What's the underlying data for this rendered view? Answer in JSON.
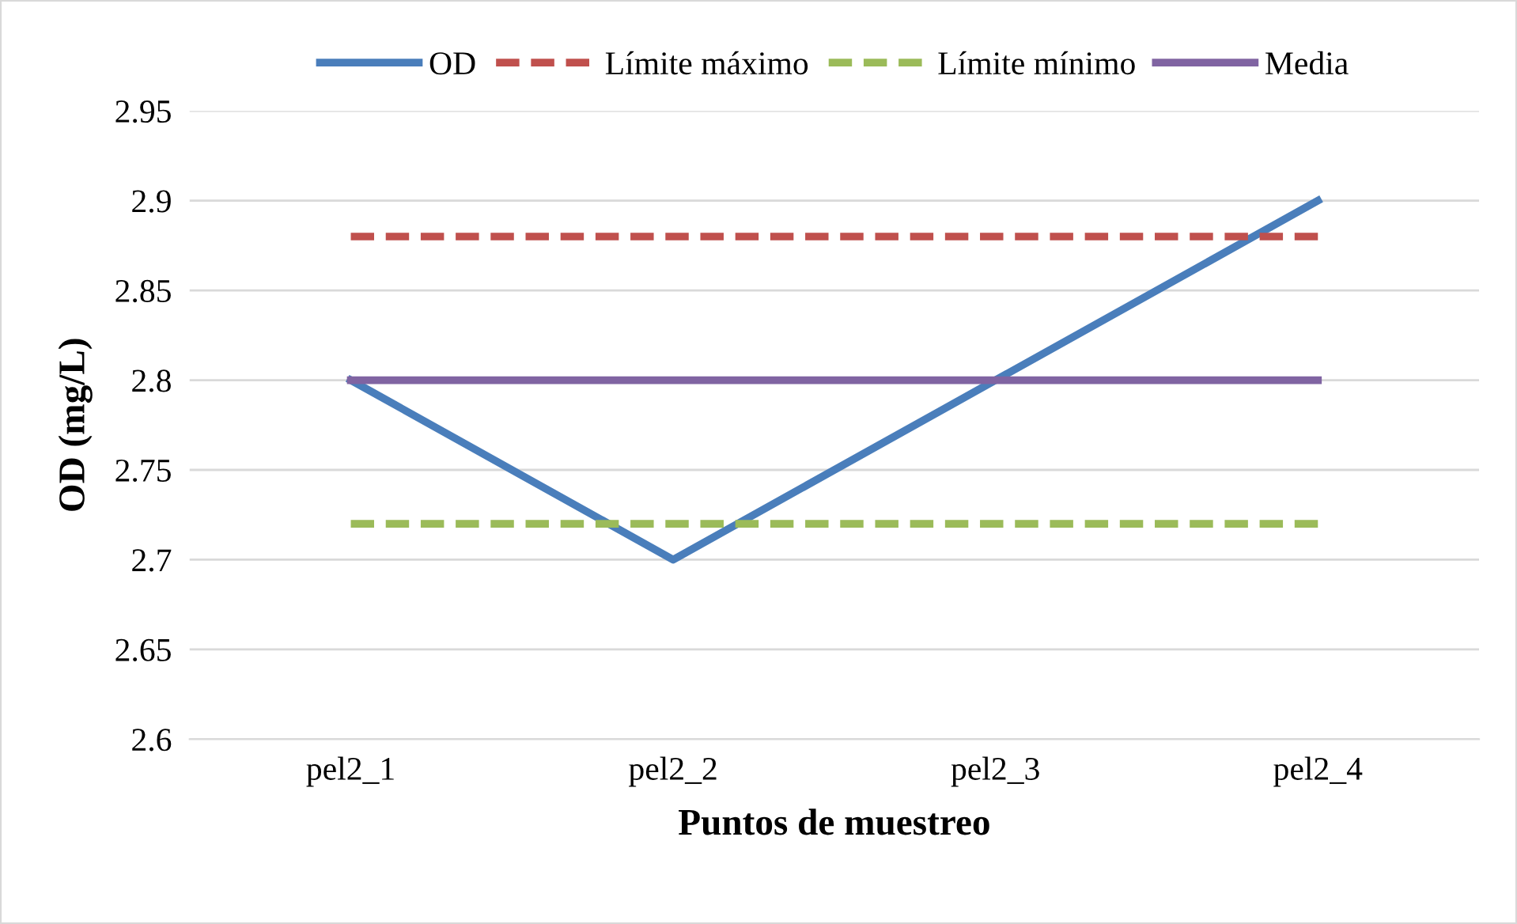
{
  "chart_data": {
    "type": "line",
    "xlabel": "Puntos de muestreo",
    "ylabel": "OD (mg/L)",
    "categories": [
      "pel2_1",
      "pel2_2",
      "pel2_3",
      "pel2_4"
    ],
    "series": [
      {
        "name": "OD",
        "color": "#4a7ebb",
        "values": [
          2.8,
          2.7,
          2.8,
          2.9
        ],
        "line_style": "solid"
      },
      {
        "name": "Límite máximo",
        "color": "#c0504d",
        "values": [
          2.88,
          2.88,
          2.88,
          2.88
        ],
        "line_style": "dashed"
      },
      {
        "name": "Límite mínimo",
        "color": "#9bbb59",
        "values": [
          2.72,
          2.72,
          2.72,
          2.72
        ],
        "line_style": "dashed"
      },
      {
        "name": "Media",
        "color": "#8064a2",
        "values": [
          2.8,
          2.8,
          2.8,
          2.8
        ],
        "line_style": "solid"
      }
    ],
    "ylim": [
      2.6,
      2.95
    ],
    "yticks": [
      2.6,
      2.65,
      2.7,
      2.75,
      2.8,
      2.85,
      2.9,
      2.95
    ],
    "grid": "y",
    "legend": "top",
    "marker": "none"
  }
}
